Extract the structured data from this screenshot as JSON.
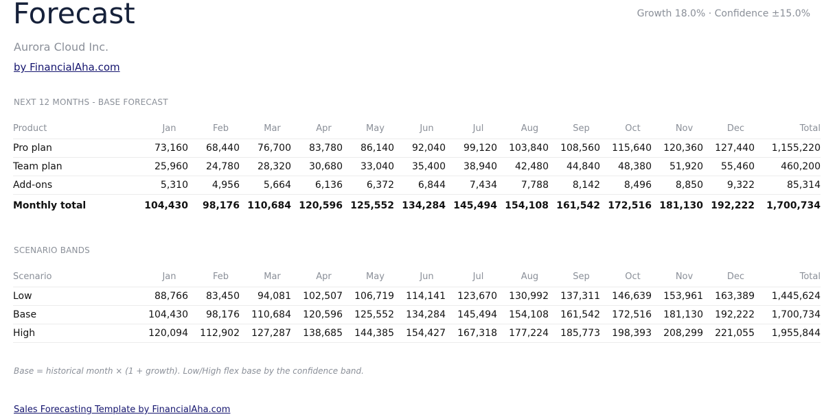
{
  "header": {
    "title": "Forecast",
    "meta": "Growth 18.0% · Confidence ±15.0%",
    "company": "Aurora Cloud Inc.",
    "byline": "by FinancialAha.com"
  },
  "months": [
    "Jan",
    "Feb",
    "Mar",
    "Apr",
    "May",
    "Jun",
    "Jul",
    "Aug",
    "Sep",
    "Oct",
    "Nov",
    "Dec"
  ],
  "base_forecast": {
    "section_label": "NEXT 12 MONTHS - BASE FORECAST",
    "label_header": "Product",
    "total_header": "Total",
    "rows": [
      {
        "label": "Pro plan",
        "values": [
          "73,160",
          "68,440",
          "76,700",
          "83,780",
          "86,140",
          "92,040",
          "99,120",
          "103,840",
          "108,560",
          "115,640",
          "120,360",
          "127,440"
        ],
        "total": "1,155,220"
      },
      {
        "label": "Team plan",
        "values": [
          "25,960",
          "24,780",
          "28,320",
          "30,680",
          "33,040",
          "35,400",
          "38,940",
          "42,480",
          "44,840",
          "48,380",
          "51,920",
          "55,460"
        ],
        "total": "460,200"
      },
      {
        "label": "Add-ons",
        "values": [
          "5,310",
          "4,956",
          "5,664",
          "6,136",
          "6,372",
          "6,844",
          "7,434",
          "7,788",
          "8,142",
          "8,496",
          "8,850",
          "9,322"
        ],
        "total": "85,314"
      }
    ],
    "total_row": {
      "label": "Monthly total",
      "values": [
        "104,430",
        "98,176",
        "110,684",
        "120,596",
        "125,552",
        "134,284",
        "145,494",
        "154,108",
        "161,542",
        "172,516",
        "181,130",
        "192,222"
      ],
      "total": "1,700,734"
    }
  },
  "scenarios": {
    "section_label": "SCENARIO BANDS",
    "label_header": "Scenario",
    "total_header": "Total",
    "rows": [
      {
        "label": "Low",
        "values": [
          "88,766",
          "83,450",
          "94,081",
          "102,507",
          "106,719",
          "114,141",
          "123,670",
          "130,992",
          "137,311",
          "146,639",
          "153,961",
          "163,389"
        ],
        "total": "1,445,624"
      },
      {
        "label": "Base",
        "values": [
          "104,430",
          "98,176",
          "110,684",
          "120,596",
          "125,552",
          "134,284",
          "145,494",
          "154,108",
          "161,542",
          "172,516",
          "181,130",
          "192,222"
        ],
        "total": "1,700,734"
      },
      {
        "label": "High",
        "values": [
          "120,094",
          "112,902",
          "127,287",
          "138,685",
          "144,385",
          "154,427",
          "167,318",
          "177,224",
          "185,773",
          "198,393",
          "208,299",
          "221,055"
        ],
        "total": "1,955,844"
      }
    ]
  },
  "footnote": "Base = historical month × (1 + growth). Low/High flex base by the confidence band.",
  "footer_link": "Sales Forecasting Template by FinancialAha.com"
}
